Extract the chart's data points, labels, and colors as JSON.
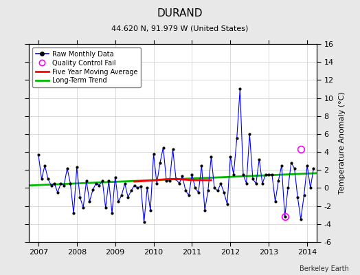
{
  "title": "DURAND",
  "subtitle": "44.620 N, 91.979 W (United States)",
  "attribution": "Berkeley Earth",
  "ylabel": "Temperature Anomaly (°C)",
  "xlim": [
    2006.75,
    2014.25
  ],
  "ylim": [
    -6,
    16
  ],
  "yticks": [
    -6,
    -4,
    -2,
    0,
    2,
    4,
    6,
    8,
    10,
    12,
    14,
    16
  ],
  "xticks": [
    2007,
    2008,
    2009,
    2010,
    2011,
    2012,
    2013,
    2014
  ],
  "background_color": "#e8e8e8",
  "plot_bg_color": "#ffffff",
  "raw_color": "#0000ff",
  "raw_marker_color": "#000000",
  "ma_color": "#ff0000",
  "trend_color": "#00bb00",
  "qc_color": "#ff00ff",
  "raw_data": [
    [
      2007.0,
      3.7
    ],
    [
      2007.083,
      1.0
    ],
    [
      2007.167,
      2.5
    ],
    [
      2007.25,
      1.0
    ],
    [
      2007.333,
      0.3
    ],
    [
      2007.417,
      0.5
    ],
    [
      2007.5,
      -0.5
    ],
    [
      2007.583,
      0.5
    ],
    [
      2007.667,
      0.3
    ],
    [
      2007.75,
      2.2
    ],
    [
      2007.833,
      0.5
    ],
    [
      2007.917,
      -2.8
    ],
    [
      2008.0,
      2.3
    ],
    [
      2008.083,
      -1.0
    ],
    [
      2008.167,
      -2.2
    ],
    [
      2008.25,
      0.8
    ],
    [
      2008.333,
      -1.5
    ],
    [
      2008.417,
      -0.2
    ],
    [
      2008.5,
      0.5
    ],
    [
      2008.583,
      0.3
    ],
    [
      2008.667,
      0.8
    ],
    [
      2008.75,
      -2.2
    ],
    [
      2008.833,
      0.8
    ],
    [
      2008.917,
      -2.8
    ],
    [
      2009.0,
      1.2
    ],
    [
      2009.083,
      -1.5
    ],
    [
      2009.167,
      -0.8
    ],
    [
      2009.25,
      0.5
    ],
    [
      2009.333,
      -1.0
    ],
    [
      2009.417,
      -0.3
    ],
    [
      2009.5,
      0.3
    ],
    [
      2009.583,
      0.0
    ],
    [
      2009.667,
      0.2
    ],
    [
      2009.75,
      -3.8
    ],
    [
      2009.833,
      0.0
    ],
    [
      2009.917,
      -2.5
    ],
    [
      2010.0,
      3.8
    ],
    [
      2010.083,
      0.5
    ],
    [
      2010.167,
      2.8
    ],
    [
      2010.25,
      4.5
    ],
    [
      2010.333,
      0.8
    ],
    [
      2010.417,
      0.8
    ],
    [
      2010.5,
      4.3
    ],
    [
      2010.583,
      1.0
    ],
    [
      2010.667,
      0.5
    ],
    [
      2010.75,
      1.3
    ],
    [
      2010.833,
      -0.3
    ],
    [
      2010.917,
      -0.8
    ],
    [
      2011.0,
      1.5
    ],
    [
      2011.083,
      0.0
    ],
    [
      2011.167,
      -0.5
    ],
    [
      2011.25,
      2.5
    ],
    [
      2011.333,
      -2.5
    ],
    [
      2011.417,
      -0.3
    ],
    [
      2011.5,
      3.5
    ],
    [
      2011.583,
      0.0
    ],
    [
      2011.667,
      -0.3
    ],
    [
      2011.75,
      0.5
    ],
    [
      2011.833,
      -0.5
    ],
    [
      2011.917,
      -1.8
    ],
    [
      2012.0,
      3.5
    ],
    [
      2012.083,
      1.5
    ],
    [
      2012.167,
      5.5
    ],
    [
      2012.25,
      11.0
    ],
    [
      2012.333,
      1.5
    ],
    [
      2012.417,
      0.5
    ],
    [
      2012.5,
      6.0
    ],
    [
      2012.583,
      1.0
    ],
    [
      2012.667,
      0.5
    ],
    [
      2012.75,
      3.2
    ],
    [
      2012.833,
      0.5
    ],
    [
      2012.917,
      1.5
    ],
    [
      2013.0,
      1.5
    ],
    [
      2013.083,
      1.5
    ],
    [
      2013.167,
      -1.5
    ],
    [
      2013.25,
      0.8
    ],
    [
      2013.333,
      2.5
    ],
    [
      2013.417,
      -3.2
    ],
    [
      2013.5,
      0.0
    ],
    [
      2013.583,
      2.8
    ],
    [
      2013.667,
      2.2
    ],
    [
      2013.75,
      -1.0
    ],
    [
      2013.833,
      -3.5
    ],
    [
      2013.917,
      -0.8
    ],
    [
      2014.0,
      2.5
    ],
    [
      2014.083,
      0.0
    ],
    [
      2014.167,
      2.2
    ]
  ],
  "moving_avg": [
    [
      2009.5,
      0.72
    ],
    [
      2009.583,
      0.74
    ],
    [
      2009.667,
      0.76
    ],
    [
      2009.75,
      0.78
    ],
    [
      2009.833,
      0.8
    ],
    [
      2009.917,
      0.82
    ],
    [
      2010.0,
      0.85
    ],
    [
      2010.083,
      0.88
    ],
    [
      2010.167,
      0.92
    ],
    [
      2010.25,
      0.95
    ],
    [
      2010.333,
      0.98
    ],
    [
      2010.417,
      1.0
    ],
    [
      2010.5,
      1.0
    ],
    [
      2010.583,
      0.99
    ],
    [
      2010.667,
      0.97
    ],
    [
      2010.75,
      0.95
    ],
    [
      2010.833,
      0.93
    ],
    [
      2010.917,
      0.9
    ],
    [
      2011.0,
      0.88
    ],
    [
      2011.083,
      0.87
    ],
    [
      2011.167,
      0.87
    ],
    [
      2011.25,
      0.87
    ],
    [
      2011.333,
      0.87
    ],
    [
      2011.417,
      0.87
    ],
    [
      2011.5,
      0.87
    ]
  ],
  "trend_line": [
    [
      2006.75,
      0.28
    ],
    [
      2014.25,
      1.65
    ]
  ],
  "qc_fail_points": [
    [
      2013.417,
      -3.2
    ],
    [
      2013.833,
      4.3
    ]
  ],
  "title_fontsize": 11,
  "subtitle_fontsize": 8,
  "tick_fontsize": 8,
  "legend_fontsize": 7,
  "attribution_fontsize": 7
}
